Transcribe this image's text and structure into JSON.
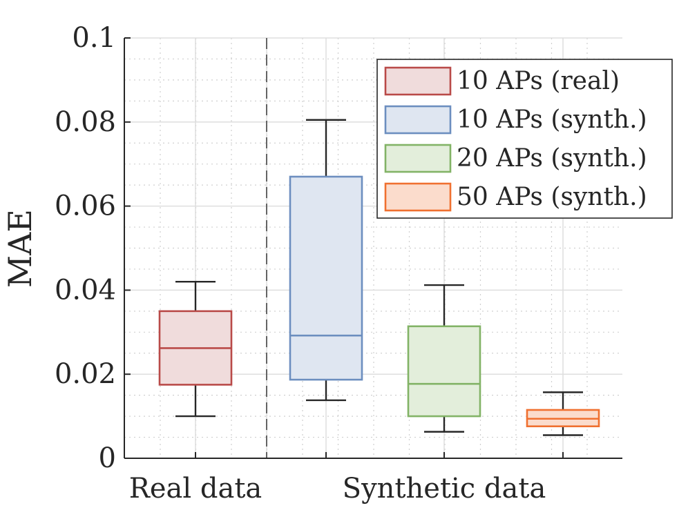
{
  "chart_data": {
    "type": "box",
    "title": "",
    "xlabel": "",
    "ylabel": "MAE",
    "ylim": [
      0,
      0.1
    ],
    "yticks": [
      0,
      0.02,
      0.04,
      0.06,
      0.08,
      0.1
    ],
    "ytick_labels": [
      "0",
      "0.02",
      "0.04",
      "0.06",
      "0.08",
      "0.1"
    ],
    "grid": true,
    "minor_grid": true,
    "group_labels": [
      "Real data",
      "Synthetic data"
    ],
    "separator": "dashed line between real and synthetic groups",
    "legend_position": "top-right",
    "series": [
      {
        "name": "10 APs (real)",
        "group": "Real data",
        "whisker_low": 0.01,
        "q1": 0.0175,
        "median": 0.0262,
        "q3": 0.035,
        "whisker_high": 0.042,
        "edge_color": "#b94a48",
        "fill_color": "#f0dcdc"
      },
      {
        "name": "10 APs (synth.)",
        "group": "Synthetic data",
        "whisker_low": 0.0138,
        "q1": 0.0187,
        "median": 0.0292,
        "q3": 0.067,
        "whisker_high": 0.0805,
        "edge_color": "#6c8ebf",
        "fill_color": "#dfe6f1"
      },
      {
        "name": "20 APs (synth.)",
        "group": "Synthetic data",
        "whisker_low": 0.0063,
        "q1": 0.01,
        "median": 0.0177,
        "q3": 0.0314,
        "whisker_high": 0.0412,
        "edge_color": "#82b366",
        "fill_color": "#e3eedb"
      },
      {
        "name": "50 APs (synth.)",
        "group": "Synthetic data",
        "whisker_low": 0.0055,
        "q1": 0.0076,
        "median": 0.0094,
        "q3": 0.0115,
        "whisker_high": 0.0157,
        "edge_color": "#f07030",
        "fill_color": "#fbdccc"
      }
    ]
  }
}
